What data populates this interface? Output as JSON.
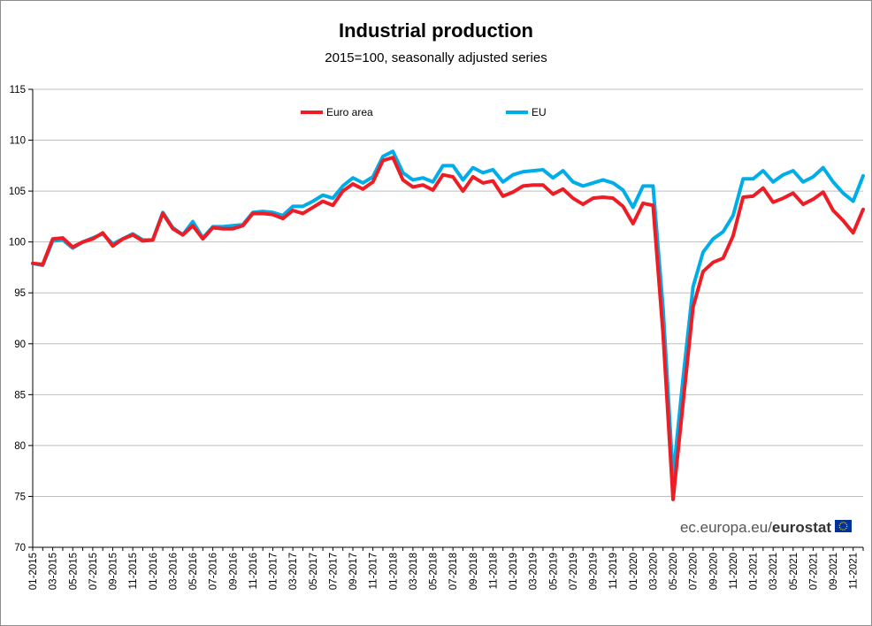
{
  "chart_data": {
    "type": "line",
    "title": "Industrial production",
    "subtitle": "2015=100, seasonally adjusted series",
    "xlabel": "",
    "ylabel": "",
    "ylim": [
      70,
      115
    ],
    "yticks": [
      70,
      75,
      80,
      85,
      90,
      95,
      100,
      105,
      110,
      115
    ],
    "grid": true,
    "legend_position": "top",
    "source": {
      "plain": "ec.europa.eu/",
      "bold": "eurostat"
    },
    "tick_labels": [
      "01-2015",
      "03-2015",
      "05-2015",
      "07-2015",
      "09-2015",
      "11-2015",
      "01-2016",
      "03-2016",
      "05-2016",
      "07-2016",
      "09-2016",
      "11-2016",
      "01-2017",
      "03-2017",
      "05-2017",
      "07-2017",
      "09-2017",
      "11-2017",
      "01-2018",
      "03-2018",
      "05-2018",
      "07-2018",
      "09-2018",
      "11-2018",
      "01-2019",
      "03-2019",
      "05-2019",
      "07-2019",
      "09-2019",
      "11-2019",
      "01-2020",
      "03-2020",
      "05-2020",
      "07-2020",
      "09-2020",
      "11-2020",
      "01-2021",
      "03-2021",
      "05-2021",
      "07-2021",
      "09-2021",
      "11-2021"
    ],
    "series": [
      {
        "name": "Euro area",
        "color": "#ee1c25",
        "values": [
          97.9,
          97.8,
          100.3,
          100.4,
          99.5,
          100.0,
          100.3,
          100.9,
          99.6,
          100.3,
          100.7,
          100.1,
          100.2,
          102.8,
          101.3,
          100.7,
          101.6,
          100.3,
          101.4,
          101.3,
          101.3,
          101.6,
          102.8,
          102.8,
          102.7,
          102.3,
          103.1,
          102.8,
          103.4,
          104.0,
          103.6,
          105.0,
          105.7,
          105.2,
          105.9,
          108.0,
          108.3,
          106.1,
          105.4,
          105.6,
          105.1,
          106.6,
          106.4,
          105.0,
          106.4,
          105.8,
          106.0,
          104.5,
          104.9,
          105.5,
          105.6,
          105.6,
          104.7,
          105.2,
          104.3,
          103.7,
          104.3,
          104.4,
          104.3,
          103.5,
          101.8,
          103.8,
          103.6,
          91.0,
          74.7,
          84.2,
          93.6,
          97.1,
          98.0,
          98.4,
          100.6,
          104.4,
          104.5,
          105.3,
          103.9,
          104.3,
          104.8,
          103.7,
          104.2,
          104.9,
          103.1,
          102.1,
          100.9,
          103.2
        ]
      },
      {
        "name": "EU",
        "color": "#00ade8",
        "values": [
          97.9,
          97.7,
          100.1,
          100.2,
          99.4,
          100.0,
          100.4,
          100.8,
          99.8,
          100.3,
          100.8,
          100.2,
          100.2,
          102.9,
          101.4,
          100.7,
          102.0,
          100.4,
          101.5,
          101.5,
          101.6,
          101.7,
          102.9,
          103.0,
          102.9,
          102.6,
          103.5,
          103.5,
          104.0,
          104.6,
          104.3,
          105.5,
          106.3,
          105.8,
          106.4,
          108.4,
          108.9,
          106.8,
          106.1,
          106.3,
          105.9,
          107.5,
          107.5,
          106.1,
          107.3,
          106.8,
          107.1,
          105.9,
          106.6,
          106.9,
          107.0,
          107.1,
          106.3,
          107.0,
          105.9,
          105.5,
          105.8,
          106.1,
          105.8,
          105.1,
          103.4,
          105.5,
          105.5,
          93.5,
          76.9,
          86.6,
          95.6,
          99.0,
          100.3,
          101.0,
          102.6,
          106.2,
          106.2,
          107.0,
          105.9,
          106.6,
          107.0,
          105.9,
          106.4,
          107.3,
          105.9,
          104.8,
          104.0,
          106.5
        ]
      }
    ]
  }
}
